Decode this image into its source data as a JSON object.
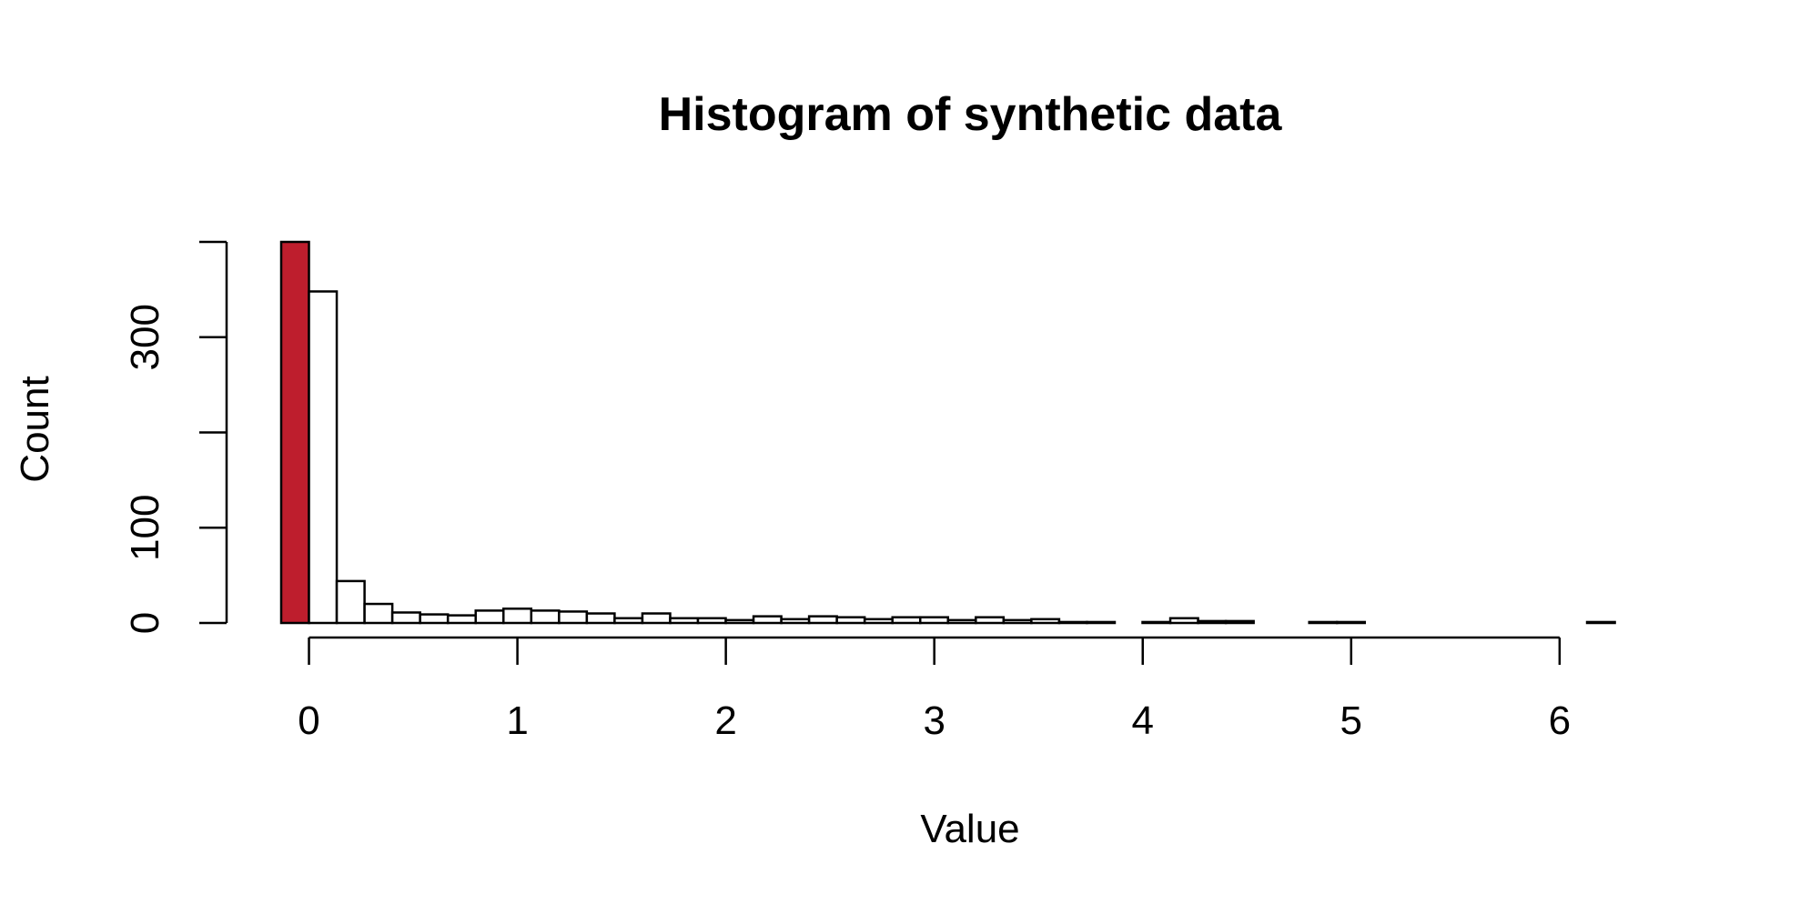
{
  "chart_data": {
    "type": "bar",
    "title": "Histogram of synthetic data",
    "xlabel": "Value",
    "ylabel": "Count",
    "xlim": [
      -0.1333,
      6.5333
    ],
    "ylim": [
      0,
      400
    ],
    "bin_width": 0.1333,
    "bin_start": -0.1333,
    "x_ticks": [
      "0",
      "1",
      "2",
      "3",
      "4",
      "5",
      "6"
    ],
    "x_tick_values": [
      0,
      1,
      2,
      3,
      4,
      5,
      6
    ],
    "y_ticks": [
      "0",
      "100",
      "300"
    ],
    "y_tick_values": [
      0,
      100,
      200,
      300,
      400
    ],
    "y_tick_labeled": [
      true,
      true,
      false,
      true,
      false
    ],
    "values": [
      400,
      348,
      44,
      20,
      11,
      9,
      8,
      13,
      15,
      13,
      12,
      10,
      5,
      10,
      5,
      5,
      3,
      7,
      4,
      7,
      6,
      4,
      6,
      6,
      3,
      6,
      3,
      4,
      1,
      1,
      0,
      1,
      5,
      2,
      2,
      0,
      0,
      1,
      1,
      0,
      0,
      0,
      0,
      0,
      0,
      0,
      0,
      1,
      0,
      0
    ],
    "highlight_index": 0,
    "highlight_color": "#BE1E2D",
    "bar_fill": "#FFFFFF",
    "grid": false,
    "legend": "none"
  }
}
